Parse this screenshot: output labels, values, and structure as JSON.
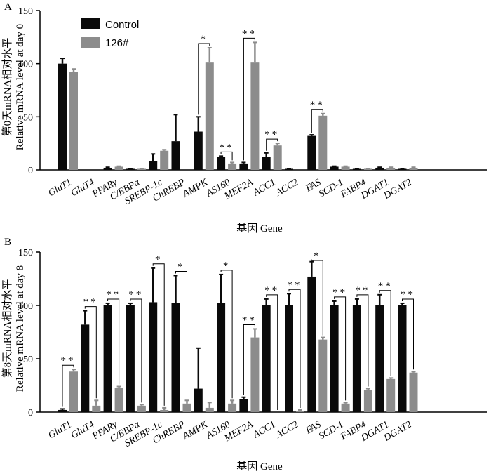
{
  "legend": {
    "control": "Control",
    "treatment": "126#"
  },
  "colors": {
    "control": "#0a0a0a",
    "treatment": "#8c8c8c"
  },
  "chart_data": [
    {
      "type": "bar",
      "panel": "A",
      "ylabel_cn": "第0天mRNA相对水平",
      "ylabel_en": "Relative mRNA level at day 0",
      "xlabel": "基因 Gene",
      "ylim": [
        0,
        150
      ],
      "yticks": [
        0,
        50,
        100,
        150
      ],
      "categories": [
        "GluT1",
        "GluT4",
        "PPARγ",
        "C/EBPα",
        "SREBP-1c",
        "ChREBP",
        "AMPK",
        "AS160",
        "MEF2A",
        "ACC1",
        "ACC2",
        "FAS",
        "SCD-1",
        "FABP4",
        "DGAT1",
        "DGAT2"
      ],
      "series": [
        {
          "name": "Control",
          "values": [
            100,
            0,
            2,
            1,
            8,
            27,
            36,
            12,
            6,
            12,
            1,
            32,
            3,
            1,
            2,
            1
          ],
          "errors": [
            5,
            0,
            0.5,
            0.3,
            7,
            25,
            14,
            1,
            1,
            4,
            0.3,
            1,
            0.5,
            0.3,
            0.5,
            0.3
          ]
        },
        {
          "name": "126#",
          "values": [
            92,
            0,
            3,
            1,
            18,
            0,
            101,
            6,
            101,
            23,
            0,
            51,
            3,
            1,
            2,
            2
          ],
          "errors": [
            3,
            0,
            0.5,
            0.3,
            1,
            0,
            14,
            1,
            19,
            2,
            0,
            2,
            0.5,
            0.3,
            0.5,
            0.5
          ]
        }
      ],
      "annotations": [
        {
          "category": "AMPK",
          "label": "*"
        },
        {
          "category": "AS160",
          "label": "**"
        },
        {
          "category": "MEF2A",
          "label": "**"
        },
        {
          "category": "ACC1",
          "label": "**"
        },
        {
          "category": "FAS",
          "label": "**"
        }
      ]
    },
    {
      "type": "bar",
      "panel": "B",
      "ylabel_cn": "第8天mRNA相对水平",
      "ylabel_en": "Relative mRNA level at day 8",
      "xlabel": "基因 Gene",
      "ylim": [
        0,
        150
      ],
      "yticks": [
        0,
        50,
        100,
        150
      ],
      "categories": [
        "GluT1",
        "GluT4",
        "PPARγ",
        "C/EBPα",
        "SREBP-1c",
        "ChREBP",
        "AMPK",
        "AS160",
        "MEF2A",
        "ACC1",
        "ACC2",
        "FAS",
        "SCD-1",
        "FABP4",
        "DGAT1",
        "DGAT2"
      ],
      "series": [
        {
          "name": "Control",
          "values": [
            2,
            82,
            100,
            100,
            103,
            102,
            22,
            102,
            12,
            100,
            100,
            127,
            100,
            100,
            100,
            100
          ],
          "errors": [
            1,
            13,
            2,
            2,
            32,
            26,
            38,
            27,
            2,
            6,
            11,
            14,
            4,
            6,
            10,
            2
          ]
        },
        {
          "name": "126#",
          "values": [
            38,
            6,
            23,
            6,
            2,
            8,
            4,
            8,
            70,
            0,
            1,
            68,
            8,
            21,
            31,
            37
          ],
          "errors": [
            2,
            5,
            1,
            1,
            2,
            3,
            5,
            3,
            8,
            0,
            1,
            2,
            1,
            1,
            1,
            1
          ]
        }
      ],
      "annotations": [
        {
          "category": "GluT1",
          "label": "**"
        },
        {
          "category": "GluT4",
          "label": "**"
        },
        {
          "category": "PPARγ",
          "label": "**"
        },
        {
          "category": "C/EBPα",
          "label": "**"
        },
        {
          "category": "SREBP-1c",
          "label": "*"
        },
        {
          "category": "ChREBP",
          "label": "*"
        },
        {
          "category": "AS160",
          "label": "*"
        },
        {
          "category": "MEF2A",
          "label": "**"
        },
        {
          "category": "ACC1",
          "label": "**"
        },
        {
          "category": "ACC2",
          "label": "**"
        },
        {
          "category": "FAS",
          "label": "*"
        },
        {
          "category": "SCD-1",
          "label": "**"
        },
        {
          "category": "FABP4",
          "label": "**"
        },
        {
          "category": "DGAT1",
          "label": "**"
        },
        {
          "category": "DGAT2",
          "label": "**"
        }
      ]
    }
  ]
}
